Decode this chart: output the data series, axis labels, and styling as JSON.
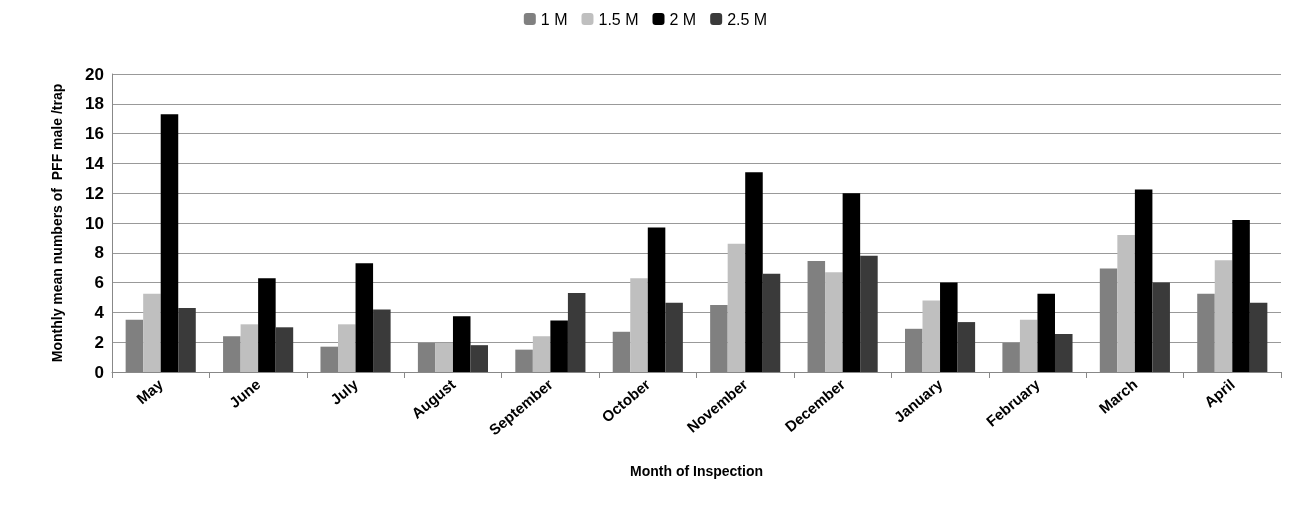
{
  "chart_data": {
    "type": "bar",
    "xlabel": "Month of Inspection",
    "ylabel": "Monthly mean numbers of  PFF male /trap",
    "categories": [
      "May",
      "June",
      "July",
      "August",
      "September",
      "October",
      "November",
      "December",
      "January",
      "February",
      "March",
      "April"
    ],
    "series": [
      {
        "name": "1 M",
        "color": "#808080",
        "values": [
          3.5,
          2.4,
          1.7,
          1.95,
          1.5,
          2.7,
          4.5,
          7.45,
          2.9,
          1.95,
          6.95,
          5.25
        ]
      },
      {
        "name": "1.5 M",
        "color": "#bfbfbf",
        "values": [
          5.25,
          3.2,
          3.2,
          1.95,
          2.4,
          6.3,
          8.6,
          6.7,
          4.8,
          3.5,
          9.2,
          7.5
        ]
      },
      {
        "name": "2 M",
        "color": "#000000",
        "values": [
          17.3,
          6.3,
          7.3,
          3.75,
          3.45,
          9.7,
          13.4,
          12.0,
          6.0,
          5.25,
          12.25,
          10.2
        ]
      },
      {
        "name": "2.5 M",
        "color": "#3a3a3a",
        "values": [
          4.3,
          3.0,
          4.2,
          1.8,
          5.3,
          4.65,
          6.6,
          7.8,
          3.35,
          2.55,
          6.0,
          4.65
        ]
      }
    ],
    "ylim": [
      0,
      20
    ],
    "yticks": [
      0,
      2,
      4,
      6,
      8,
      10,
      12,
      14,
      16,
      18,
      20
    ],
    "grid": "y",
    "legend": "top"
  }
}
